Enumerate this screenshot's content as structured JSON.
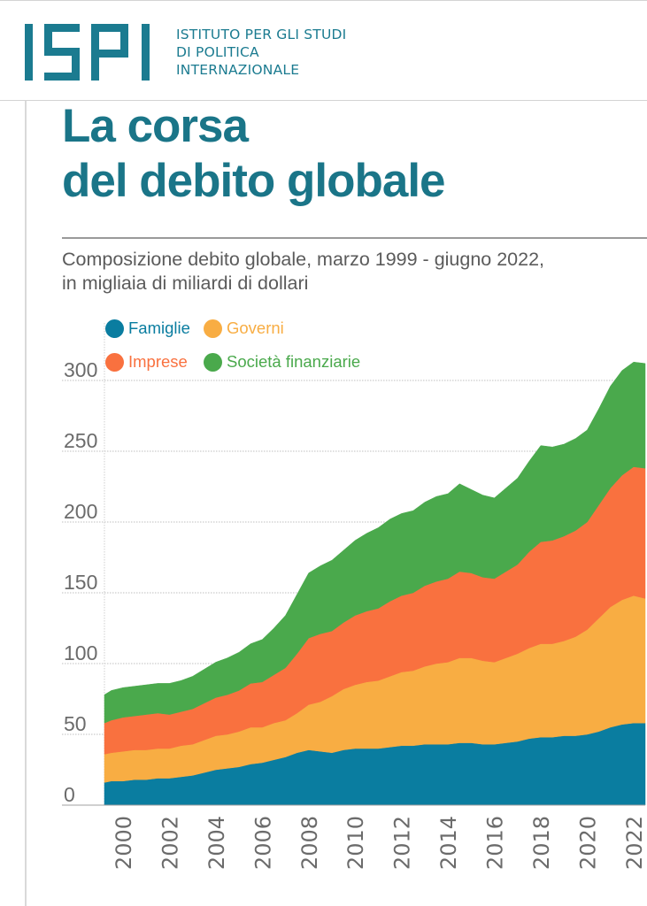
{
  "header": {
    "logo_text": "ISPI",
    "org_name_lines": [
      "ISTITUTO PER GLI STUDI",
      "DI POLITICA",
      "INTERNAZIONALE"
    ],
    "brand_color": "#1b7b90"
  },
  "chart_data": {
    "type": "area",
    "stacked": true,
    "title_lines": [
      "La corsa",
      "del debito globale"
    ],
    "subtitle_lines": [
      "Composizione debito globale, marzo 1999 - giugno 2022,",
      "in migliaia di miliardi di dollari"
    ],
    "xlabel": "",
    "ylabel": "",
    "xlim": [
      1999.2,
      2022.5
    ],
    "ylim": [
      0,
      300
    ],
    "yticks": [
      0,
      50,
      100,
      150,
      200,
      250,
      300
    ],
    "xticks": [
      "2000",
      "2002",
      "2004",
      "2006",
      "2008",
      "2010",
      "2012",
      "2014",
      "2016",
      "2018",
      "2020",
      "2022"
    ],
    "grid": true,
    "legend_position": "top-left",
    "x": [
      1999.2,
      1999.5,
      2000.0,
      2000.5,
      2001.0,
      2001.5,
      2002.0,
      2002.5,
      2003.0,
      2003.5,
      2004.0,
      2004.5,
      2005.0,
      2005.5,
      2006.0,
      2006.5,
      2007.0,
      2007.5,
      2008.0,
      2008.5,
      2009.0,
      2009.5,
      2010.0,
      2010.5,
      2011.0,
      2011.5,
      2012.0,
      2012.5,
      2013.0,
      2013.5,
      2014.0,
      2014.5,
      2015.0,
      2015.5,
      2016.0,
      2016.5,
      2017.0,
      2017.5,
      2018.0,
      2018.5,
      2019.0,
      2019.5,
      2020.0,
      2020.5,
      2021.0,
      2021.5,
      2022.0,
      2022.5
    ],
    "series": [
      {
        "name": "Famiglie",
        "color": "#0a7da0",
        "values": [
          16,
          17,
          17,
          18,
          18,
          19,
          19,
          20,
          21,
          23,
          25,
          26,
          27,
          29,
          30,
          32,
          34,
          37,
          39,
          38,
          37,
          39,
          40,
          40,
          40,
          41,
          42,
          42,
          43,
          43,
          43,
          44,
          44,
          43,
          43,
          44,
          45,
          47,
          48,
          48,
          49,
          49,
          50,
          52,
          55,
          57,
          58,
          58
        ]
      },
      {
        "name": "Governi",
        "color": "#f8ad43",
        "values": [
          20,
          20,
          21,
          21,
          21,
          21,
          21,
          22,
          22,
          23,
          24,
          24,
          25,
          26,
          25,
          26,
          26,
          28,
          32,
          35,
          40,
          43,
          45,
          47,
          48,
          50,
          52,
          53,
          55,
          57,
          58,
          60,
          60,
          59,
          58,
          60,
          62,
          64,
          66,
          66,
          67,
          70,
          74,
          80,
          85,
          88,
          90,
          88
        ]
      },
      {
        "name": "Imprese",
        "color": "#f9713f",
        "values": [
          22,
          23,
          24,
          24,
          25,
          25,
          24,
          24,
          25,
          26,
          27,
          28,
          29,
          31,
          32,
          34,
          37,
          42,
          47,
          48,
          46,
          47,
          49,
          50,
          51,
          53,
          54,
          55,
          57,
          58,
          59,
          61,
          60,
          59,
          59,
          61,
          63,
          68,
          72,
          73,
          74,
          75,
          76,
          80,
          84,
          88,
          91,
          92
        ]
      },
      {
        "name": "Società finanziarie",
        "color": "#4aa94c",
        "values": [
          20,
          21,
          21,
          21,
          21,
          21,
          22,
          22,
          23,
          24,
          25,
          26,
          27,
          28,
          30,
          33,
          37,
          42,
          46,
          48,
          50,
          51,
          53,
          55,
          57,
          58,
          58,
          58,
          59,
          60,
          60,
          62,
          59,
          58,
          57,
          59,
          61,
          64,
          68,
          66,
          65,
          65,
          65,
          68,
          72,
          74,
          74,
          74
        ]
      }
    ]
  }
}
